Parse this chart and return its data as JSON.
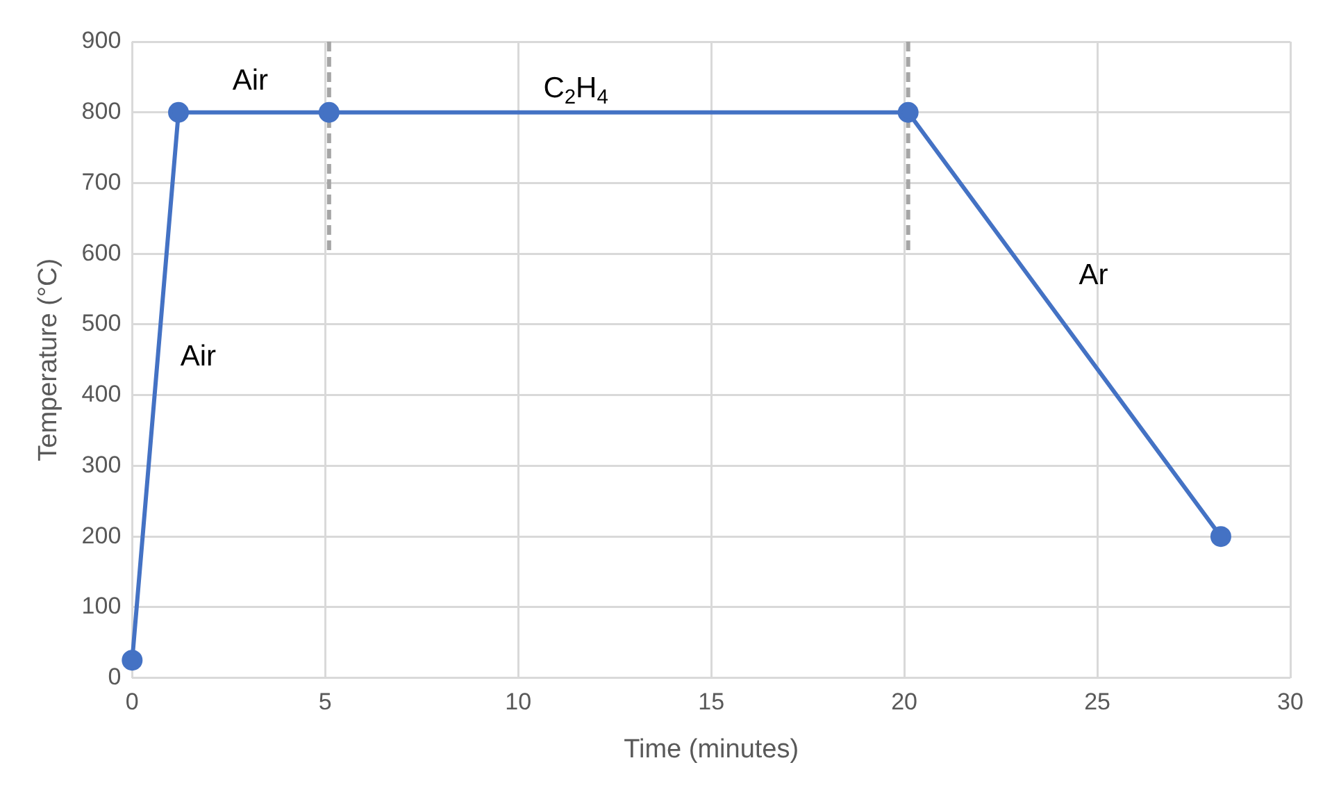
{
  "chart_data": {
    "type": "line",
    "xlabel": "Time (minutes)",
    "ylabel": "Temperature (°C)",
    "series": [
      {
        "color": "#4472c4",
        "x": [
          0,
          1.2,
          5.1,
          20.1,
          28.2
        ],
        "values": [
          25,
          800,
          800,
          800,
          200
        ],
        "marker": "circle",
        "line_style": "solid"
      },
      {
        "color": "#a5a5a5",
        "x": [
          5.1,
          5.1
        ],
        "values": [
          605,
          900
        ],
        "marker": "none",
        "line_style": "dashed"
      },
      {
        "color": "#a5a5a5",
        "x": [
          20.1,
          20.1
        ],
        "values": [
          605,
          900
        ],
        "marker": "none",
        "line_style": "dashed"
      }
    ],
    "xlim": [
      0,
      30
    ],
    "xticks": [
      0,
      5,
      10,
      15,
      20,
      25,
      30
    ],
    "ylim": [
      0,
      900
    ],
    "yticks": [
      0,
      100,
      200,
      300,
      400,
      500,
      600,
      700,
      800,
      900
    ],
    "grid": true,
    "legend": false,
    "annotations": [
      "Air",
      "C$_{2}$H$_{4}$",
      "Air",
      "Ar"
    ]
  }
}
